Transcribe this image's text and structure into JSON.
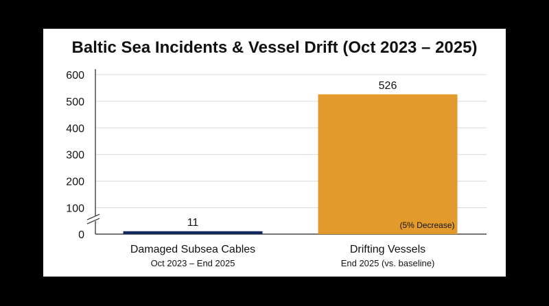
{
  "chart_data": {
    "type": "bar",
    "title": "Baltic Sea Incidents & Vessel Drift (Oct 2023 – 2025)",
    "categories": [
      "Damaged Subsea Cables",
      "Drifting Vessels"
    ],
    "category_sublabels": [
      "Oct 2023 – End 2025",
      "End 2025 (vs. baseline)"
    ],
    "values": [
      11,
      526
    ],
    "data_labels": [
      "11",
      "526"
    ],
    "bar_colors": [
      "#13295e",
      "#e29a2c"
    ],
    "annotation": "(5% Decrease)",
    "y_ticks": [
      "0",
      "100",
      "200",
      "300",
      "400",
      "500",
      "600"
    ],
    "y_tick_values": [
      0,
      100,
      200,
      300,
      400,
      500,
      600
    ],
    "ylim": [
      0,
      600
    ],
    "axis_break": true,
    "grid": true,
    "xlabel": "",
    "ylabel": ""
  }
}
